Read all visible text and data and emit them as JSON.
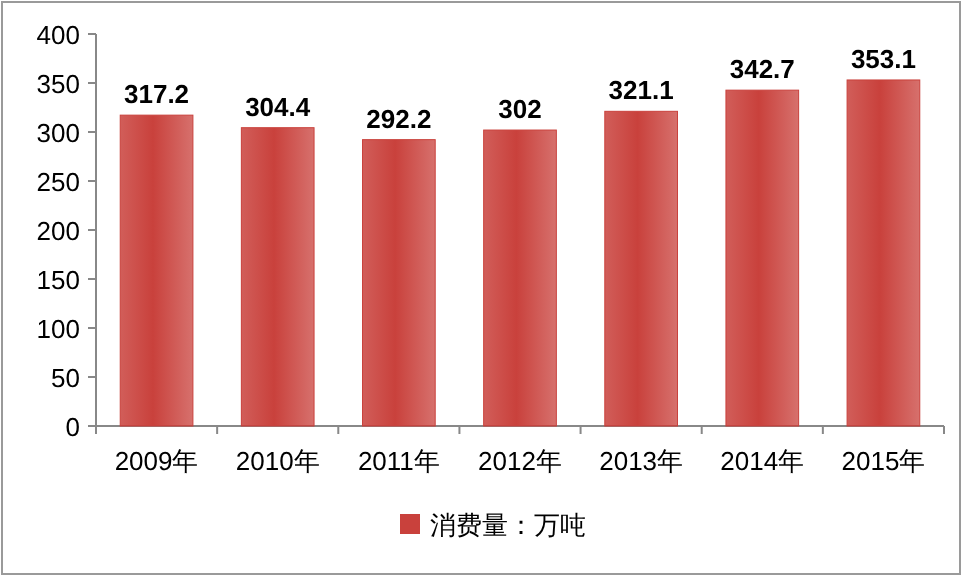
{
  "chart_data": {
    "type": "bar",
    "categories": [
      "2009年",
      "2010年",
      "2011年",
      "2012年",
      "2013年",
      "2014年",
      "2015年"
    ],
    "series": [
      {
        "name": "消费量：万吨",
        "color": "#c9413c",
        "values": [
          317.2,
          304.4,
          292.2,
          302,
          321.1,
          342.7,
          353.1
        ]
      }
    ],
    "ylim": [
      0,
      400
    ],
    "yticks": [
      0,
      50,
      100,
      150,
      200,
      250,
      300,
      350,
      400
    ],
    "data_labels": true,
    "legend": "bottom",
    "grid": false
  }
}
